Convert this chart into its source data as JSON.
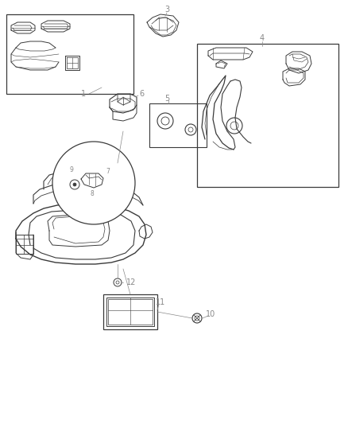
{
  "bg_color": "#ffffff",
  "line_color": "#3a3a3a",
  "gray_color": "#888888",
  "fig_width": 4.38,
  "fig_height": 5.33,
  "dpi": 100
}
